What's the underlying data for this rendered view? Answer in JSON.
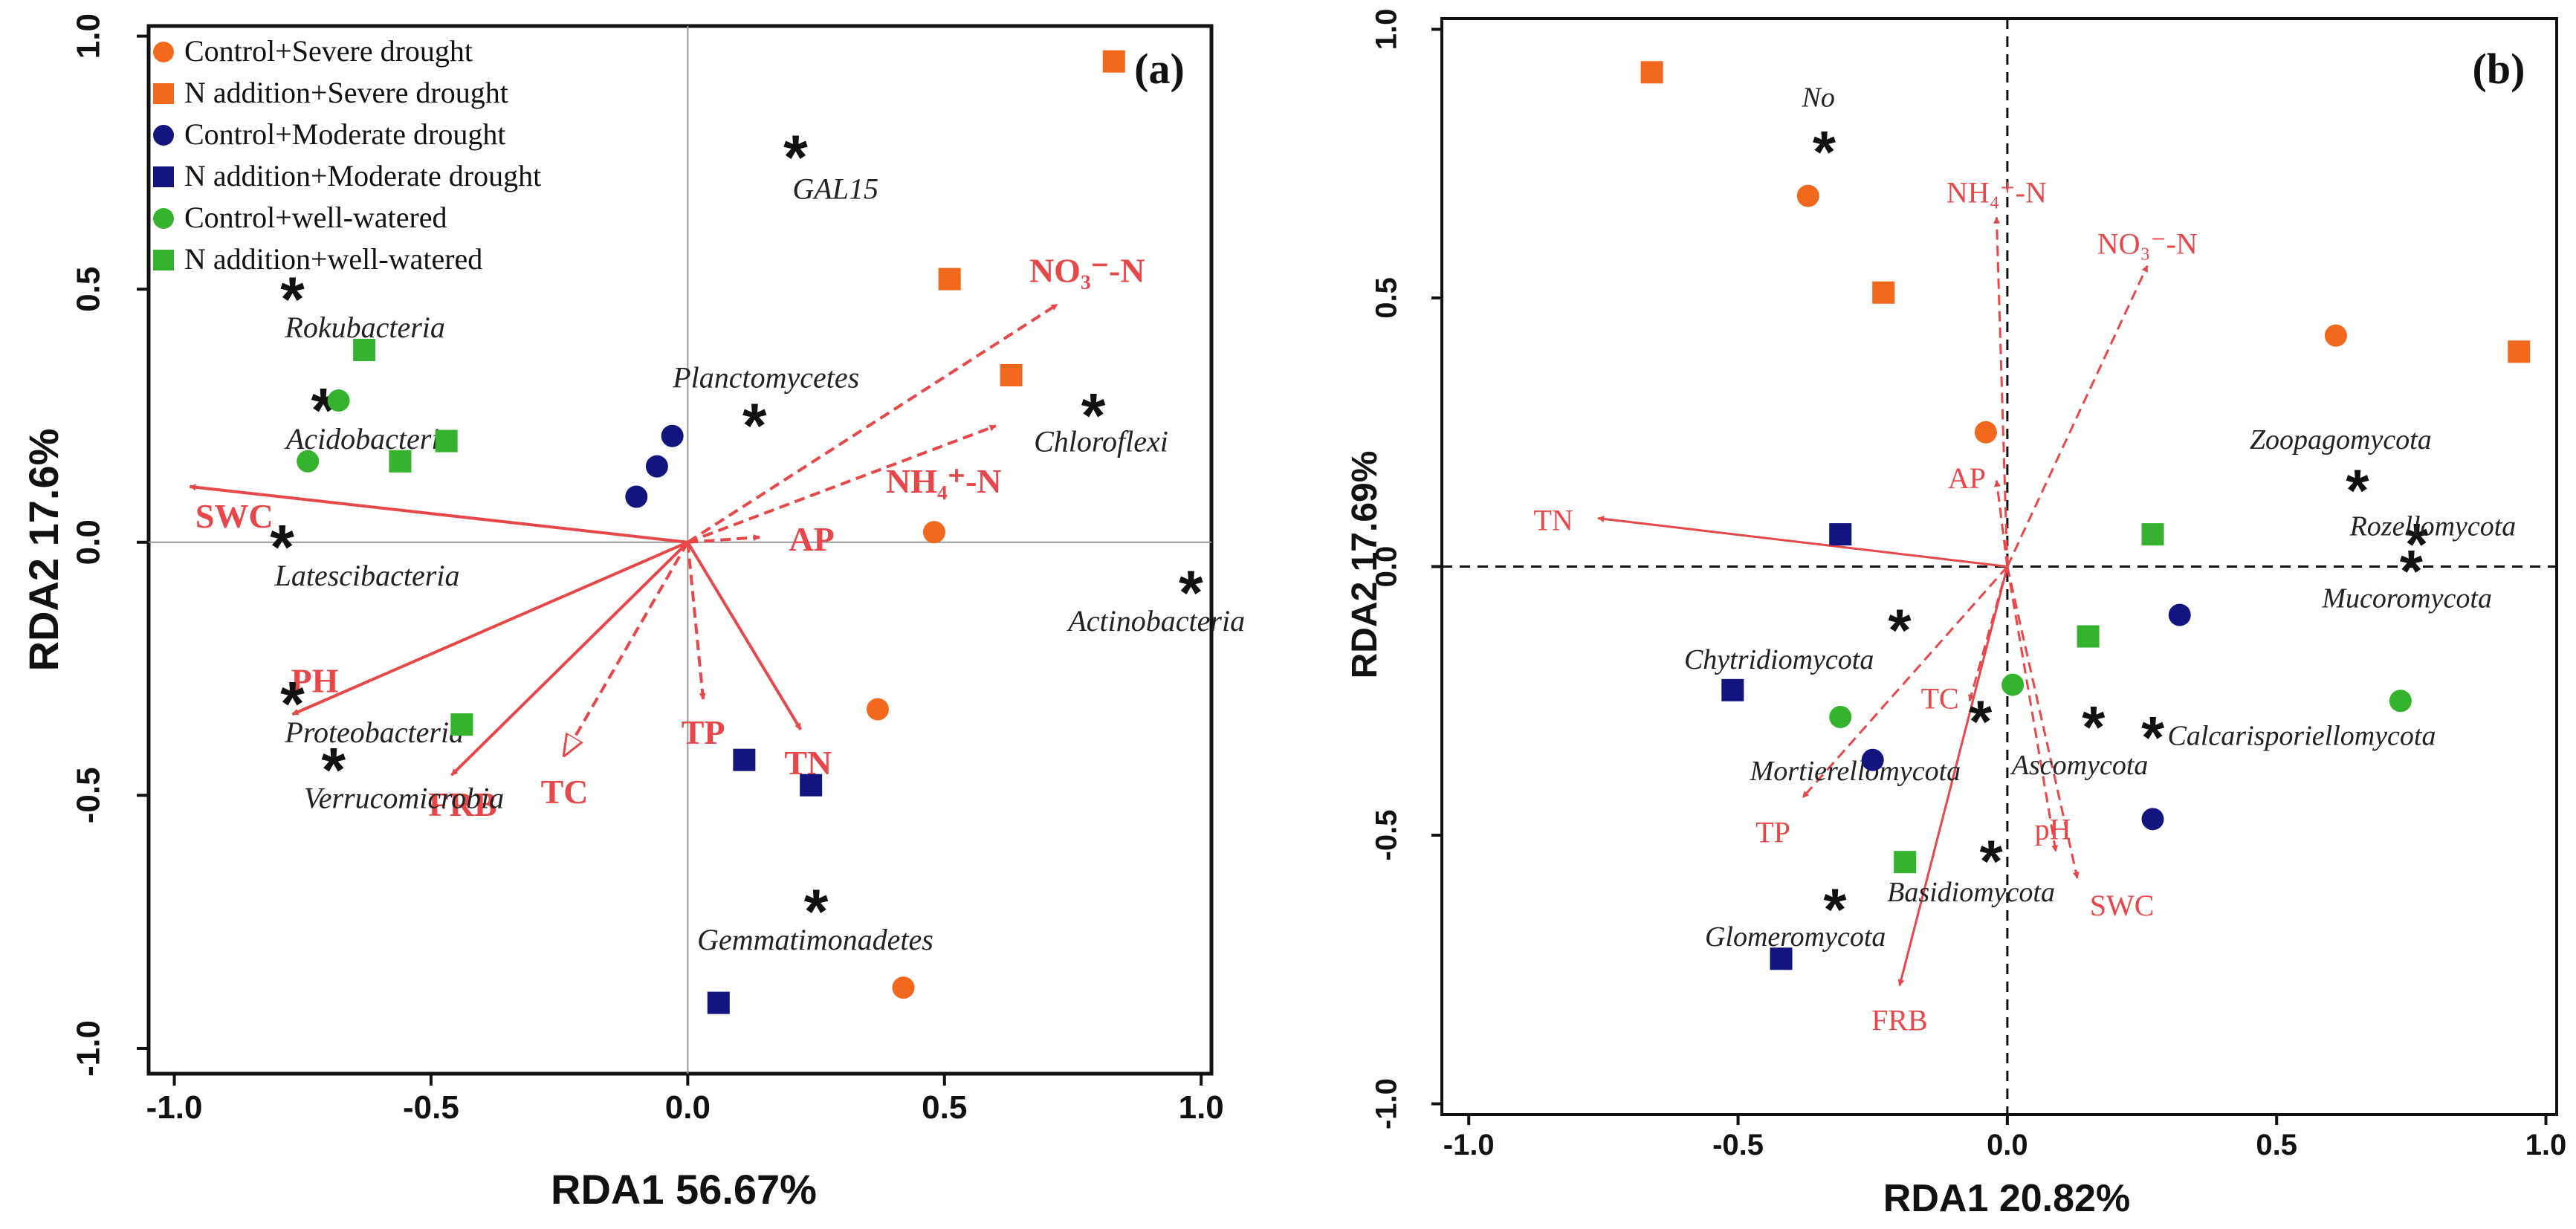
{
  "colors": {
    "orange": "#f2691e",
    "navy": "#14147f",
    "green": "#35b22e",
    "arrow": "#e8474a",
    "star": "#111111"
  },
  "legend": [
    {
      "label": "Control+Severe drought",
      "color": "orange",
      "shape": "circle"
    },
    {
      "label": "N addition+Severe drought",
      "color": "orange",
      "shape": "square"
    },
    {
      "label": "Control+Moderate drought",
      "color": "navy",
      "shape": "circle"
    },
    {
      "label": "N addition+Moderate drought",
      "color": "navy",
      "shape": "square"
    },
    {
      "label": "Control+well-watered",
      "color": "green",
      "shape": "circle"
    },
    {
      "label": "N addition+well-watered",
      "color": "green",
      "shape": "square"
    }
  ],
  "chart_data": [
    {
      "type": "scatter",
      "panel": "(a)",
      "xlabel": "RDA1  56.67%",
      "ylabel": "RDA2  17.6%",
      "xlim": [
        -1.05,
        1.02
      ],
      "ylim": [
        -1.05,
        1.02
      ],
      "xticks": [
        -1.0,
        -0.5,
        0.0,
        0.5,
        1.0
      ],
      "yticks": [
        -1.0,
        -0.5,
        0.0,
        0.5,
        1.0
      ],
      "xtick_labels": [
        "-1.0",
        "-0.5",
        "0.0",
        "0.5",
        "1.0"
      ],
      "ytick_labels": [
        "-1.0",
        "-0.5",
        "0.0",
        "0.5",
        "1.0"
      ],
      "origin_lines": "solid",
      "samples": [
        {
          "x": 0.83,
          "y": 0.95,
          "color": "orange",
          "shape": "square"
        },
        {
          "x": 0.51,
          "y": 0.52,
          "color": "orange",
          "shape": "square"
        },
        {
          "x": 0.63,
          "y": 0.33,
          "color": "orange",
          "shape": "square"
        },
        {
          "x": 0.48,
          "y": 0.02,
          "color": "orange",
          "shape": "circle"
        },
        {
          "x": 0.37,
          "y": -0.33,
          "color": "orange",
          "shape": "circle"
        },
        {
          "x": 0.42,
          "y": -0.88,
          "color": "orange",
          "shape": "circle"
        },
        {
          "x": -0.03,
          "y": 0.21,
          "color": "navy",
          "shape": "circle"
        },
        {
          "x": -0.06,
          "y": 0.15,
          "color": "navy",
          "shape": "circle"
        },
        {
          "x": -0.1,
          "y": 0.09,
          "color": "navy",
          "shape": "circle"
        },
        {
          "x": 0.11,
          "y": -0.43,
          "color": "navy",
          "shape": "square"
        },
        {
          "x": 0.24,
          "y": -0.48,
          "color": "navy",
          "shape": "square"
        },
        {
          "x": 0.06,
          "y": -0.91,
          "color": "navy",
          "shape": "square"
        },
        {
          "x": -0.63,
          "y": 0.38,
          "color": "green",
          "shape": "square"
        },
        {
          "x": -0.47,
          "y": 0.2,
          "color": "green",
          "shape": "square"
        },
        {
          "x": -0.56,
          "y": 0.16,
          "color": "green",
          "shape": "square"
        },
        {
          "x": -0.68,
          "y": 0.28,
          "color": "green",
          "shape": "circle"
        },
        {
          "x": -0.74,
          "y": 0.16,
          "color": "green",
          "shape": "circle"
        },
        {
          "x": -0.44,
          "y": -0.36,
          "color": "green",
          "shape": "square"
        }
      ],
      "arrows": [
        {
          "label": "NO₃⁻-N",
          "x": 0.72,
          "y": 0.47,
          "style": "dashed"
        },
        {
          "label": "NH₄⁺-N",
          "x": 0.6,
          "y": 0.23,
          "style": "dashed"
        },
        {
          "label": "AP",
          "x": 0.14,
          "y": 0.01,
          "style": "dashed"
        },
        {
          "label": "SWC",
          "x": -0.97,
          "y": 0.11,
          "style": "solid"
        },
        {
          "label": "PH",
          "x": -0.77,
          "y": -0.34,
          "style": "solid"
        },
        {
          "label": "FRB",
          "x": -0.46,
          "y": -0.46,
          "style": "solid"
        },
        {
          "label": "TC",
          "x": -0.24,
          "y": -0.42,
          "style": "dashed"
        },
        {
          "label": "TP",
          "x": 0.03,
          "y": -0.31,
          "style": "dashed"
        },
        {
          "label": "TN",
          "x": 0.22,
          "y": -0.37,
          "style": "solid"
        }
      ],
      "species": [
        {
          "name": "GAL15",
          "x": 0.21,
          "y": 0.77
        },
        {
          "name": "Rokubacteria",
          "x": -0.77,
          "y": 0.49
        },
        {
          "name": "Acidobacteria",
          "x": -0.71,
          "y": 0.27
        },
        {
          "name": "Planctomycetes",
          "x": 0.13,
          "y": 0.24
        },
        {
          "name": "Chloroflexi",
          "x": 0.79,
          "y": 0.26
        },
        {
          "name": "Latescibacteria",
          "x": -0.79,
          "y": 0.0
        },
        {
          "name": "Actinobacteria",
          "x": 0.98,
          "y": -0.09
        },
        {
          "name": "Proteobacteria",
          "x": -0.77,
          "y": -0.31
        },
        {
          "name": "Verrucomicrobia",
          "x": -0.69,
          "y": -0.44
        },
        {
          "name": "Gemmatimonadetes",
          "x": 0.25,
          "y": -0.72
        }
      ]
    },
    {
      "type": "scatter",
      "panel": "(b)",
      "xlabel": "RDA1 20.82%",
      "ylabel": "RDA2 17.69%",
      "xlim": [
        -1.05,
        1.02
      ],
      "ylim": [
        -1.02,
        1.02
      ],
      "xticks": [
        -1.0,
        -0.5,
        0.0,
        0.5,
        1.0
      ],
      "yticks": [
        -1.0,
        -0.5,
        0.0,
        0.5,
        1.0
      ],
      "xtick_labels": [
        "-1.0",
        "-0.5",
        "0.0",
        "0.5",
        "1.0"
      ],
      "ytick_labels": [
        "-1.0",
        "-0.5",
        "0.0",
        "0.5",
        "1.0"
      ],
      "origin_lines": "dashed",
      "samples": [
        {
          "x": -0.66,
          "y": 0.92,
          "color": "orange",
          "shape": "square"
        },
        {
          "x": -0.23,
          "y": 0.51,
          "color": "orange",
          "shape": "square"
        },
        {
          "x": 0.95,
          "y": 0.4,
          "color": "orange",
          "shape": "square"
        },
        {
          "x": -0.37,
          "y": 0.69,
          "color": "orange",
          "shape": "circle"
        },
        {
          "x": 0.61,
          "y": 0.43,
          "color": "orange",
          "shape": "circle"
        },
        {
          "x": -0.04,
          "y": 0.25,
          "color": "orange",
          "shape": "circle"
        },
        {
          "x": -0.31,
          "y": 0.06,
          "color": "navy",
          "shape": "square"
        },
        {
          "x": -0.51,
          "y": -0.23,
          "color": "navy",
          "shape": "square"
        },
        {
          "x": -0.42,
          "y": -0.73,
          "color": "navy",
          "shape": "square"
        },
        {
          "x": 0.32,
          "y": -0.09,
          "color": "navy",
          "shape": "circle"
        },
        {
          "x": -0.25,
          "y": -0.36,
          "color": "navy",
          "shape": "circle"
        },
        {
          "x": 0.27,
          "y": -0.47,
          "color": "navy",
          "shape": "circle"
        },
        {
          "x": 0.27,
          "y": 0.06,
          "color": "green",
          "shape": "square"
        },
        {
          "x": 0.15,
          "y": -0.13,
          "color": "green",
          "shape": "square"
        },
        {
          "x": -0.19,
          "y": -0.55,
          "color": "green",
          "shape": "square"
        },
        {
          "x": 0.01,
          "y": -0.22,
          "color": "green",
          "shape": "circle"
        },
        {
          "x": -0.31,
          "y": -0.28,
          "color": "green",
          "shape": "circle"
        },
        {
          "x": 0.73,
          "y": -0.25,
          "color": "green",
          "shape": "circle"
        }
      ],
      "arrows": [
        {
          "label": "NH₄⁺-N",
          "x": -0.02,
          "y": 0.65,
          "style": "dashed"
        },
        {
          "label": "NO₃⁻-N",
          "x": 0.26,
          "y": 0.56,
          "style": "dashed"
        },
        {
          "label": "AP",
          "x": -0.02,
          "y": 0.16,
          "style": "dashed"
        },
        {
          "label": "TN",
          "x": -0.76,
          "y": 0.09,
          "style": "solid"
        },
        {
          "label": "TC",
          "x": -0.07,
          "y": -0.25,
          "style": "dashed"
        },
        {
          "label": "TP",
          "x": -0.38,
          "y": -0.43,
          "style": "dashed"
        },
        {
          "label": "pH",
          "x": 0.09,
          "y": -0.53,
          "style": "dashed"
        },
        {
          "label": "SWC",
          "x": 0.13,
          "y": -0.58,
          "style": "dashed"
        },
        {
          "label": "FRB",
          "x": -0.2,
          "y": -0.78,
          "style": "solid"
        }
      ],
      "species": [
        {
          "name": "No",
          "x": -0.34,
          "y": 0.78
        },
        {
          "name": "Zoopagomycota",
          "x": 0.65,
          "y": 0.15
        },
        {
          "name": "Rozellomycota",
          "x": 0.76,
          "y": 0.05
        },
        {
          "name": "Mucoromycota",
          "x": 0.75,
          "y": 0.0
        },
        {
          "name": "Chytridiomycota",
          "x": -0.2,
          "y": -0.11
        },
        {
          "name": "Mortierellomycota",
          "x": -0.05,
          "y": -0.28
        },
        {
          "name": "Ascomycota",
          "x": 0.16,
          "y": -0.29
        },
        {
          "name": "Calcarisporiellomycota",
          "x": 0.27,
          "y": -0.31
        },
        {
          "name": "Basidiomycota",
          "x": -0.03,
          "y": -0.54
        },
        {
          "name": "Glomeromycota",
          "x": -0.32,
          "y": -0.63
        }
      ]
    }
  ]
}
